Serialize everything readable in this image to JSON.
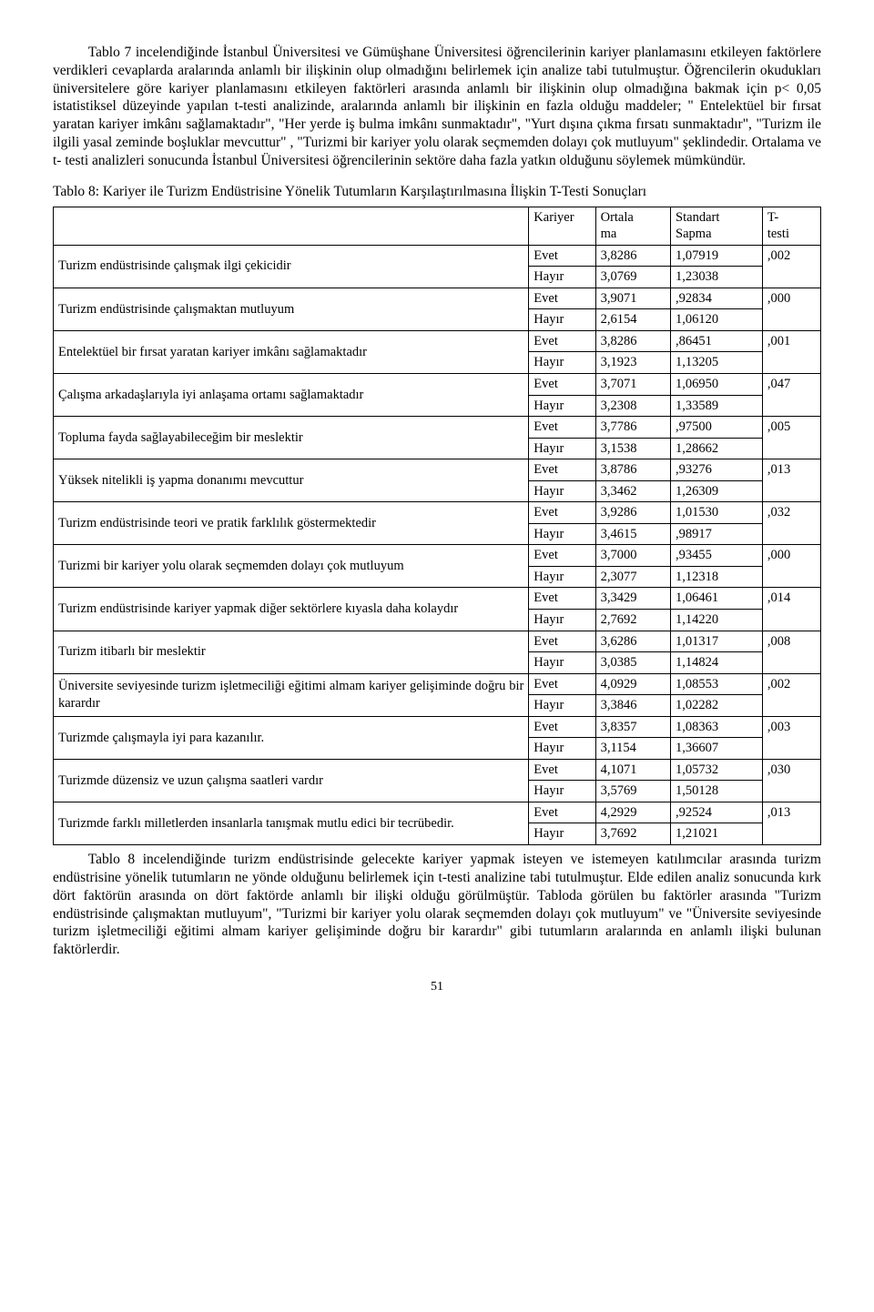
{
  "para1": "Tablo 7 incelendiğinde İstanbul Üniversitesi ve Gümüşhane Üniversitesi öğrencilerinin kariyer planlamasını etkileyen faktörlere verdikleri cevaplarda aralarında anlamlı bir ilişkinin olup olmadığını belirlemek için analize tabi tutulmuştur. Öğrencilerin okudukları üniversitelere göre kariyer planlamasını etkileyen faktörleri arasında anlamlı bir ilişkinin olup olmadığına bakmak için p< 0,05 istatistiksel düzeyinde yapılan t-testi analizinde, aralarında anlamlı bir ilişkinin en fazla olduğu maddeler; \" Entelektüel bir fırsat yaratan kariyer imkânı sağlamaktadır\", \"Her yerde iş bulma imkânı sunmaktadır\", \"Yurt dışına çıkma fırsatı sunmaktadır\", \"Turizm ile ilgili yasal zeminde boşluklar mevcuttur\" , \"Turizmi bir kariyer yolu olarak seçmemden dolayı çok mutluyum\" şeklindedir. Ortalama ve t- testi analizleri sonucunda İstanbul Üniversitesi öğrencilerinin sektöre daha fazla yatkın olduğunu söylemek mümkündür.",
  "table_caption": "Tablo 8: Kariyer ile Turizm Endüstrisine Yönelik Tutumların Karşılaştırılmasına İlişkin T-Testi Sonuçları",
  "headers": {
    "kariyer": "Kariyer",
    "ortalama": "Ortala\nma",
    "sapma": "Standart Sapma",
    "t": "T-testi"
  },
  "evet": "Evet",
  "hayir": "Hayır",
  "rows": [
    {
      "label": "Turizm endüstrisinde çalışmak ilgi çekicidir",
      "e_ort": "3,8286",
      "e_sap": "1,07919",
      "h_ort": "3,0769",
      "h_sap": "1,23038",
      "t": ",002"
    },
    {
      "label": "Turizm endüstrisinde çalışmaktan mutluyum",
      "e_ort": "3,9071",
      "e_sap": ",92834",
      "h_ort": "2,6154",
      "h_sap": "1,06120",
      "t": ",000"
    },
    {
      "label": "Entelektüel bir fırsat yaratan kariyer imkânı sağlamaktadır",
      "e_ort": "3,8286",
      "e_sap": ",86451",
      "h_ort": "3,1923",
      "h_sap": "1,13205",
      "t": ",001"
    },
    {
      "label": "Çalışma arkadaşlarıyla iyi anlaşama ortamı sağlamaktadır",
      "e_ort": "3,7071",
      "e_sap": "1,06950",
      "h_ort": "3,2308",
      "h_sap": "1,33589",
      "t": ",047"
    },
    {
      "label": "Topluma fayda sağlayabileceğim bir meslektir",
      "e_ort": "3,7786",
      "e_sap": ",97500",
      "h_ort": "3,1538",
      "h_sap": "1,28662",
      "t": ",005"
    },
    {
      "label": "Yüksek nitelikli iş yapma donanımı mevcuttur",
      "e_ort": "3,8786",
      "e_sap": ",93276",
      "h_ort": "3,3462",
      "h_sap": "1,26309",
      "t": ",013"
    },
    {
      "label": "Turizm endüstrisinde teori ve pratik farklılık göstermektedir",
      "e_ort": "3,9286",
      "e_sap": "1,01530",
      "h_ort": "3,4615",
      "h_sap": ",98917",
      "t": ",032"
    },
    {
      "label": "Turizmi bir kariyer yolu olarak seçmemden dolayı çok mutluyum",
      "e_ort": "3,7000",
      "e_sap": ",93455",
      "h_ort": "2,3077",
      "h_sap": "1,12318",
      "t": ",000"
    },
    {
      "label": "Turizm endüstrisinde kariyer yapmak diğer sektörlere kıyasla daha kolaydır",
      "e_ort": "3,3429",
      "e_sap": "1,06461",
      "h_ort": "2,7692",
      "h_sap": "1,14220",
      "t": ",014"
    },
    {
      "label": "Turizm itibarlı bir meslektir",
      "e_ort": "3,6286",
      "e_sap": "1,01317",
      "h_ort": "3,0385",
      "h_sap": "1,14824",
      "t": ",008"
    },
    {
      "label": "Üniversite seviyesinde turizm işletmeciliği eğitimi almam kariyer gelişiminde doğru bir karardır",
      "e_ort": "4,0929",
      "e_sap": "1,08553",
      "h_ort": "3,3846",
      "h_sap": "1,02282",
      "t": ",002"
    },
    {
      "label": "Turizmde çalışmayla iyi para kazanılır.",
      "e_ort": "3,8357",
      "e_sap": "1,08363",
      "h_ort": "3,1154",
      "h_sap": "1,36607",
      "t": ",003"
    },
    {
      "label": "Turizmde düzensiz ve uzun çalışma saatleri vardır",
      "e_ort": "4,1071",
      "e_sap": "1,05732",
      "h_ort": "3,5769",
      "h_sap": "1,50128",
      "t": ",030"
    },
    {
      "label": "Turizmde farklı milletlerden insanlarla tanışmak mutlu edici bir tecrübedir.",
      "e_ort": "4,2929",
      "e_sap": ",92524",
      "h_ort": "3,7692",
      "h_sap": "1,21021",
      "t": ",013"
    }
  ],
  "para2": "Tablo 8 incelendiğinde turizm endüstrisinde gelecekte kariyer yapmak isteyen ve istemeyen katılımcılar arasında turizm endüstrisine yönelik tutumların ne yönde olduğunu belirlemek için t-testi analizine tabi tutulmuştur. Elde edilen analiz sonucunda kırk dört faktörün arasında on dört faktörde anlamlı bir ilişki olduğu görülmüştür. Tabloda görülen bu faktörler arasında \"Turizm endüstrisinde çalışmaktan mutluyum\", \"Turizmi bir kariyer yolu olarak seçmemden dolayı çok mutluyum\" ve \"Üniversite seviyesinde turizm işletmeciliği eğitimi almam kariyer gelişiminde doğru bir karardır\" gibi tutumların aralarında en anlamlı ilişki bulunan faktörlerdir.",
  "page_number": "51"
}
